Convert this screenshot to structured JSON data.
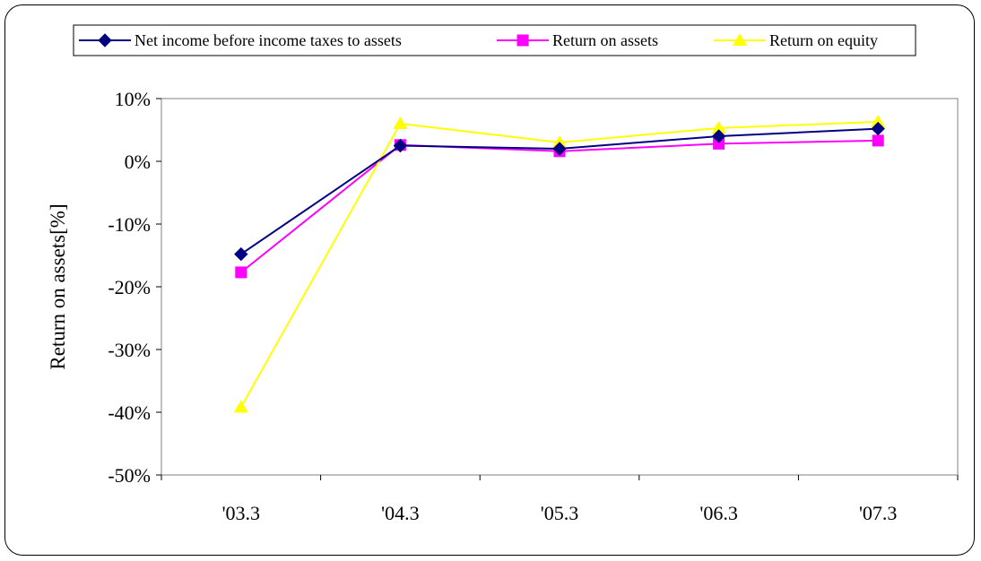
{
  "chart_data": {
    "type": "line",
    "categories": [
      "'03.3",
      "'04.3",
      "'05.3",
      "'06.3",
      "'07.3"
    ],
    "series": [
      {
        "name": "Net income before income taxes to assets",
        "values": [
          -14.8,
          2.5,
          2.0,
          4.0,
          5.2
        ],
        "color": "#000080",
        "marker": "diamond"
      },
      {
        "name": "Return on assets",
        "values": [
          -17.7,
          2.6,
          1.6,
          2.8,
          3.3
        ],
        "color": "#FF00FF",
        "marker": "square"
      },
      {
        "name": "Return on equity",
        "values": [
          -39.2,
          6.0,
          3.0,
          5.3,
          6.3
        ],
        "color": "#FFFF00",
        "marker": "triangle"
      }
    ],
    "y_ticks": [
      "10%",
      "0%",
      "-10%",
      "-20%",
      "-30%",
      "-40%",
      "-50%"
    ],
    "ylim": [
      -50,
      10
    ],
    "ylabel": "Return on assets[%]",
    "xlabel": "",
    "legend_position": "top",
    "grid": false
  }
}
